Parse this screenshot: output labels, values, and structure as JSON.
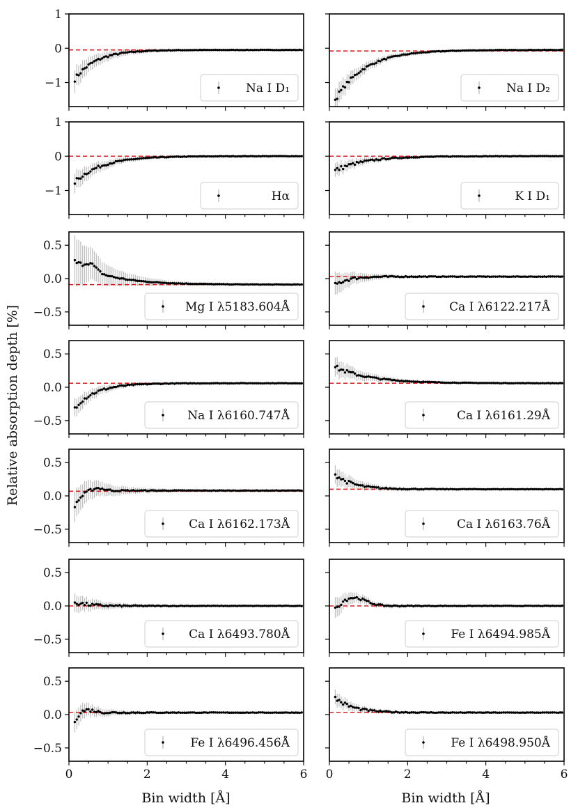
{
  "figure": {
    "ylabel": "Relative absorption depth [%]",
    "xlabel": "Bin width [Å]"
  },
  "chart_data": [
    {
      "type": "scatter",
      "legend": "Na I D₁",
      "ylim": [
        -1.7,
        1
      ],
      "yticks": [
        1,
        0,
        -1
      ],
      "ref": -0.05,
      "curve": {
        "start": -0.9,
        "end": -0.05,
        "tau": 0.55
      },
      "xticks": [
        0,
        2,
        4,
        6
      ],
      "xlim": [
        0,
        6
      ],
      "x_range": [
        0.15,
        6.0
      ],
      "err0": 0.35,
      "err_tau": 0.8,
      "bump": null
    },
    {
      "type": "scatter",
      "legend": "Na I D₂",
      "ylim": [
        -1.7,
        1
      ],
      "yticks": [
        1,
        0,
        -1
      ],
      "ref": -0.08,
      "curve": {
        "start": -1.5,
        "end": -0.05,
        "tau": 0.75
      },
      "xticks": [
        0,
        2,
        4,
        6
      ],
      "xlim": [
        0,
        6
      ],
      "x_range": [
        0.15,
        6.0
      ],
      "err0": 0.35,
      "err_tau": 0.8,
      "bump": null
    },
    {
      "type": "scatter",
      "legend": "Hα",
      "ylim": [
        -1.7,
        1
      ],
      "yticks": [
        1,
        0,
        -1
      ],
      "ref": 0.0,
      "curve": {
        "start": -0.75,
        "end": 0.0,
        "tau": 0.7
      },
      "xticks": [
        0,
        2,
        4,
        6
      ],
      "xlim": [
        0,
        6
      ],
      "x_range": [
        0.15,
        6.0
      ],
      "err0": 0.3,
      "err_tau": 0.8,
      "bump": null
    },
    {
      "type": "scatter",
      "legend": "K I D₁",
      "ylim": [
        -1.7,
        1
      ],
      "yticks": [
        1,
        0,
        -1
      ],
      "ref": 0.0,
      "curve": {
        "start": -0.42,
        "end": 0.0,
        "tau": 0.75
      },
      "xticks": [
        0,
        2,
        4,
        6
      ],
      "xlim": [
        0,
        6
      ],
      "x_range": [
        0.15,
        6.0
      ],
      "err0": 0.2,
      "err_tau": 0.8,
      "bump": null
    },
    {
      "type": "scatter",
      "legend": "Mg I λ5183.604Å",
      "ylim": [
        -0.7,
        0.7
      ],
      "yticks": [
        0.5,
        0.0,
        -0.5
      ],
      "ref": -0.09,
      "curve": {
        "start": 0.25,
        "end": -0.09,
        "tau": 0.9
      },
      "xticks": [
        0,
        2,
        4,
        6
      ],
      "xlim": [
        0,
        6
      ],
      "x_range": [
        0.15,
        6.0
      ],
      "err0": 0.42,
      "err_tau": 0.9,
      "bump": {
        "x": 0.55,
        "h": 0.1,
        "w": 0.2
      }
    },
    {
      "type": "scatter",
      "legend": "Ca I λ6122.217Å",
      "ylim": [
        -0.7,
        0.7
      ],
      "yticks": [
        0.5,
        0.0,
        -0.5
      ],
      "ref": 0.03,
      "curve": {
        "start": -0.1,
        "end": 0.03,
        "tau": 0.3
      },
      "xticks": [
        0,
        2,
        4,
        6
      ],
      "xlim": [
        0,
        6
      ],
      "x_range": [
        0.15,
        6.0
      ],
      "err0": 0.2,
      "err_tau": 0.6,
      "bump": null
    },
    {
      "type": "scatter",
      "legend": "Na I λ6160.747Å",
      "ylim": [
        -0.7,
        0.7
      ],
      "yticks": [
        0.5,
        0.0,
        -0.5
      ],
      "ref": 0.06,
      "curve": {
        "start": -0.3,
        "end": 0.06,
        "tau": 0.55
      },
      "xticks": [
        0,
        2,
        4,
        6
      ],
      "xlim": [
        0,
        6
      ],
      "x_range": [
        0.15,
        6.0
      ],
      "err0": 0.15,
      "err_tau": 0.7,
      "bump": null
    },
    {
      "type": "scatter",
      "legend": "Ca I λ6161.29Å",
      "ylim": [
        -0.7,
        0.7
      ],
      "yticks": [
        0.5,
        0.0,
        -0.5
      ],
      "ref": 0.06,
      "curve": {
        "start": 0.3,
        "end": 0.06,
        "tau": 0.9
      },
      "xticks": [
        0,
        2,
        4,
        6
      ],
      "xlim": [
        0,
        6
      ],
      "x_range": [
        0.15,
        6.0
      ],
      "err0": 0.15,
      "err_tau": 0.8,
      "bump": null
    },
    {
      "type": "scatter",
      "legend": "Ca I λ6162.173Å",
      "ylim": [
        -0.7,
        0.7
      ],
      "yticks": [
        0.5,
        0.0,
        -0.5
      ],
      "ref": 0.07,
      "curve": {
        "start": -0.15,
        "end": 0.08,
        "tau": 0.2
      },
      "xticks": [
        0,
        2,
        4,
        6
      ],
      "xlim": [
        0,
        6
      ],
      "x_range": [
        0.15,
        6.0
      ],
      "err0": 0.25,
      "err_tau": 0.8,
      "bump": {
        "x": 0.7,
        "h": 0.05,
        "w": 0.25
      }
    },
    {
      "type": "scatter",
      "legend": "Ca I λ6163.76Å",
      "ylim": [
        -0.7,
        0.7
      ],
      "yticks": [
        0.5,
        0.0,
        -0.5
      ],
      "ref": 0.1,
      "curve": {
        "start": 0.32,
        "end": 0.1,
        "tau": 0.45
      },
      "xticks": [
        0,
        2,
        4,
        6
      ],
      "xlim": [
        0,
        6
      ],
      "x_range": [
        0.15,
        6.0
      ],
      "err0": 0.15,
      "err_tau": 0.7,
      "bump": null
    },
    {
      "type": "scatter",
      "legend": "Ca I λ6493.780Å",
      "ylim": [
        -0.7,
        0.7
      ],
      "yticks": [
        0.5,
        0.0,
        -0.5
      ],
      "ref": 0.0,
      "curve": {
        "start": 0.06,
        "end": 0.0,
        "tau": 0.3
      },
      "xticks": [
        0,
        2,
        4,
        6
      ],
      "xlim": [
        0,
        6
      ],
      "x_range": [
        0.15,
        6.0
      ],
      "err0": 0.15,
      "err_tau": 0.7,
      "bump": null
    },
    {
      "type": "scatter",
      "legend": "Fe I λ6494.985Å",
      "ylim": [
        -0.7,
        0.7
      ],
      "yticks": [
        0.5,
        0.0,
        -0.5
      ],
      "ref": 0.0,
      "curve": {
        "start": -0.1,
        "end": 0.0,
        "tau": 0.15
      },
      "xticks": [
        0,
        2,
        4,
        6
      ],
      "xlim": [
        0,
        6
      ],
      "x_range": [
        0.15,
        6.0
      ],
      "err0": 0.18,
      "err_tau": 0.6,
      "bump": {
        "x": 0.6,
        "h": 0.13,
        "w": 0.45
      }
    },
    {
      "type": "scatter",
      "legend": "Fe I λ6496.456Å",
      "ylim": [
        -0.7,
        0.7
      ],
      "yticks": [
        0.5,
        0.0,
        -0.5
      ],
      "ref": 0.03,
      "curve": {
        "start": -0.12,
        "end": 0.03,
        "tau": 0.15
      },
      "xticks": [
        0,
        2,
        4,
        6
      ],
      "xlim": [
        0,
        6
      ],
      "x_range": [
        0.15,
        6.0
      ],
      "err0": 0.18,
      "err_tau": 0.6,
      "bump": {
        "x": 0.4,
        "h": 0.06,
        "w": 0.3
      }
    },
    {
      "type": "scatter",
      "legend": "Fe I λ6498.950Å",
      "ylim": [
        -0.7,
        0.7
      ],
      "yticks": [
        0.5,
        0.0,
        -0.5
      ],
      "ref": 0.03,
      "curve": {
        "start": 0.25,
        "end": 0.03,
        "tau": 0.45
      },
      "xticks": [
        0,
        2,
        4,
        6
      ],
      "xlim": [
        0,
        6
      ],
      "x_range": [
        0.15,
        6.0
      ],
      "err0": 0.12,
      "err_tau": 0.6,
      "bump": null
    }
  ],
  "colors": {
    "points": "#000000",
    "errorbars": "#bdbdbd",
    "reference": "#e31a1c",
    "axes": "#000000",
    "legend_border": "#cccccc"
  }
}
